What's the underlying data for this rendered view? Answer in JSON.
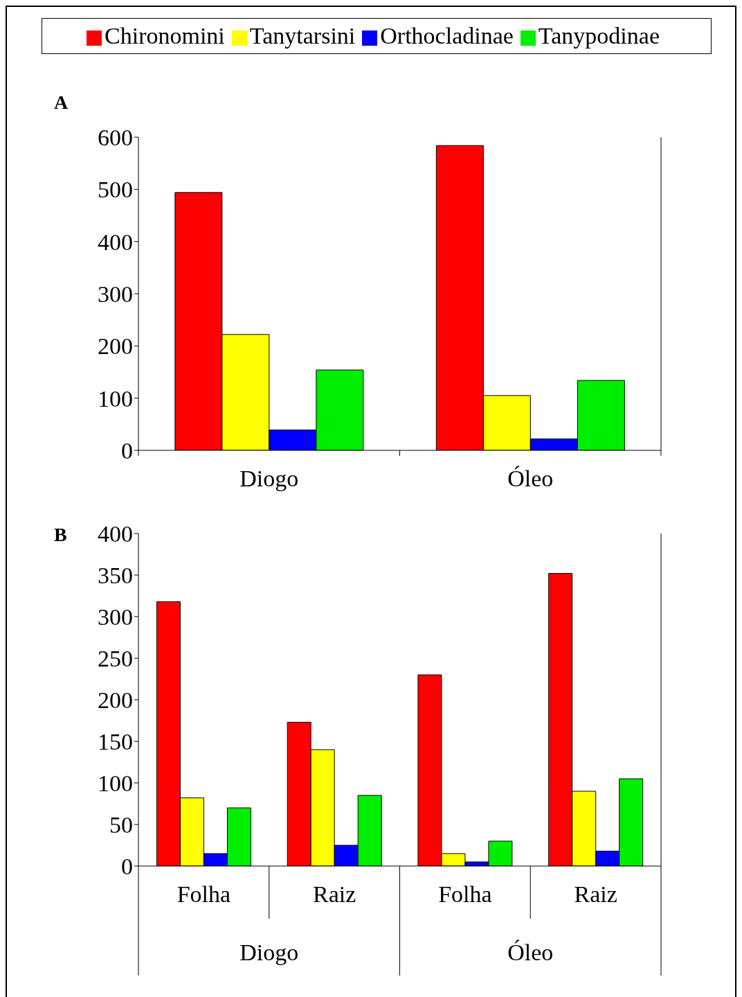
{
  "chart_data": [
    {
      "type": "bar",
      "title": "A",
      "categories": [
        "Diogo",
        "Óleo"
      ],
      "series": [
        {
          "name": "Chironomini",
          "color": "#ff0000",
          "values": [
            494,
            584
          ]
        },
        {
          "name": "Tanytarsini",
          "color": "#ffff00",
          "values": [
            222,
            105
          ]
        },
        {
          "name": "Orthocladinae",
          "color": "#0000ff",
          "values": [
            39,
            22
          ]
        },
        {
          "name": "Tanypodinae",
          "color": "#00ee00",
          "values": [
            154,
            134
          ]
        }
      ],
      "ylim": [
        0,
        600
      ],
      "yticks": [
        0,
        100,
        200,
        300,
        400,
        500,
        600
      ],
      "grid": false,
      "legend": "top"
    },
    {
      "type": "bar",
      "title": "B",
      "categories": [
        "Folha",
        "Raiz",
        "Folha",
        "Raiz"
      ],
      "annotations": [
        "Diogo",
        "Óleo"
      ],
      "series": [
        {
          "color": "#ff0000",
          "values": [
            318,
            173,
            230,
            352
          ]
        },
        {
          "color": "#ffff00",
          "values": [
            82,
            140,
            15,
            90
          ]
        },
        {
          "color": "#0000ff",
          "values": [
            15,
            25,
            5,
            18
          ]
        },
        {
          "color": "#00ee00",
          "values": [
            70,
            85,
            30,
            105
          ]
        }
      ],
      "ylim": [
        0,
        400
      ],
      "yticks": [
        0,
        50,
        100,
        150,
        200,
        250,
        300,
        350,
        400
      ],
      "grid": false,
      "legend": false
    }
  ]
}
